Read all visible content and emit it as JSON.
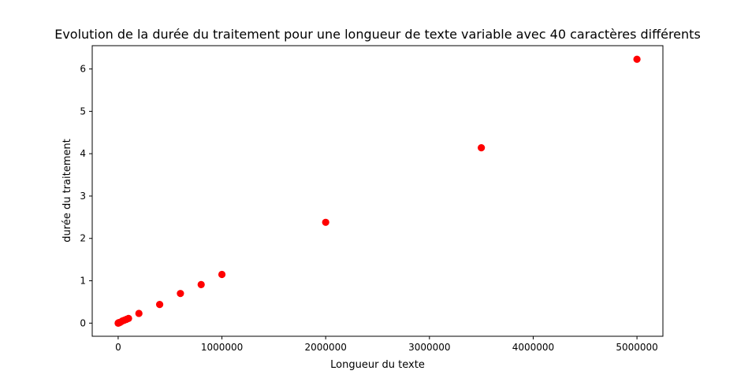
{
  "chart_data": {
    "type": "scatter",
    "title": "Evolution de la durée du traitement pour une longueur de texte variable avec 40 caractères différents",
    "xlabel": "Longueur du texte",
    "ylabel": "durée du traitement",
    "xlim": [
      -250000,
      5250000
    ],
    "ylim": [
      -0.31,
      6.55
    ],
    "xticks": [
      0,
      1000000,
      2000000,
      3000000,
      4000000,
      5000000
    ],
    "xtick_labels": [
      "0",
      "1000000",
      "2000000",
      "3000000",
      "4000000",
      "5000000"
    ],
    "yticks": [
      0,
      1,
      2,
      3,
      4,
      5,
      6
    ],
    "ytick_labels": [
      "0",
      "1",
      "2",
      "3",
      "4",
      "5",
      "6"
    ],
    "grid": false,
    "marker_color": "#ff0000",
    "series": [
      {
        "x": [
          100,
          1000,
          5000,
          10000,
          20000,
          40000,
          60000,
          80000,
          100000,
          200000,
          400000,
          600000,
          800000,
          1000000,
          2000000,
          3500000,
          5000000
        ],
        "y": [
          0.0,
          0.0,
          0.01,
          0.01,
          0.02,
          0.05,
          0.07,
          0.09,
          0.11,
          0.23,
          0.44,
          0.7,
          0.91,
          1.15,
          2.38,
          4.14,
          6.23
        ]
      }
    ]
  }
}
